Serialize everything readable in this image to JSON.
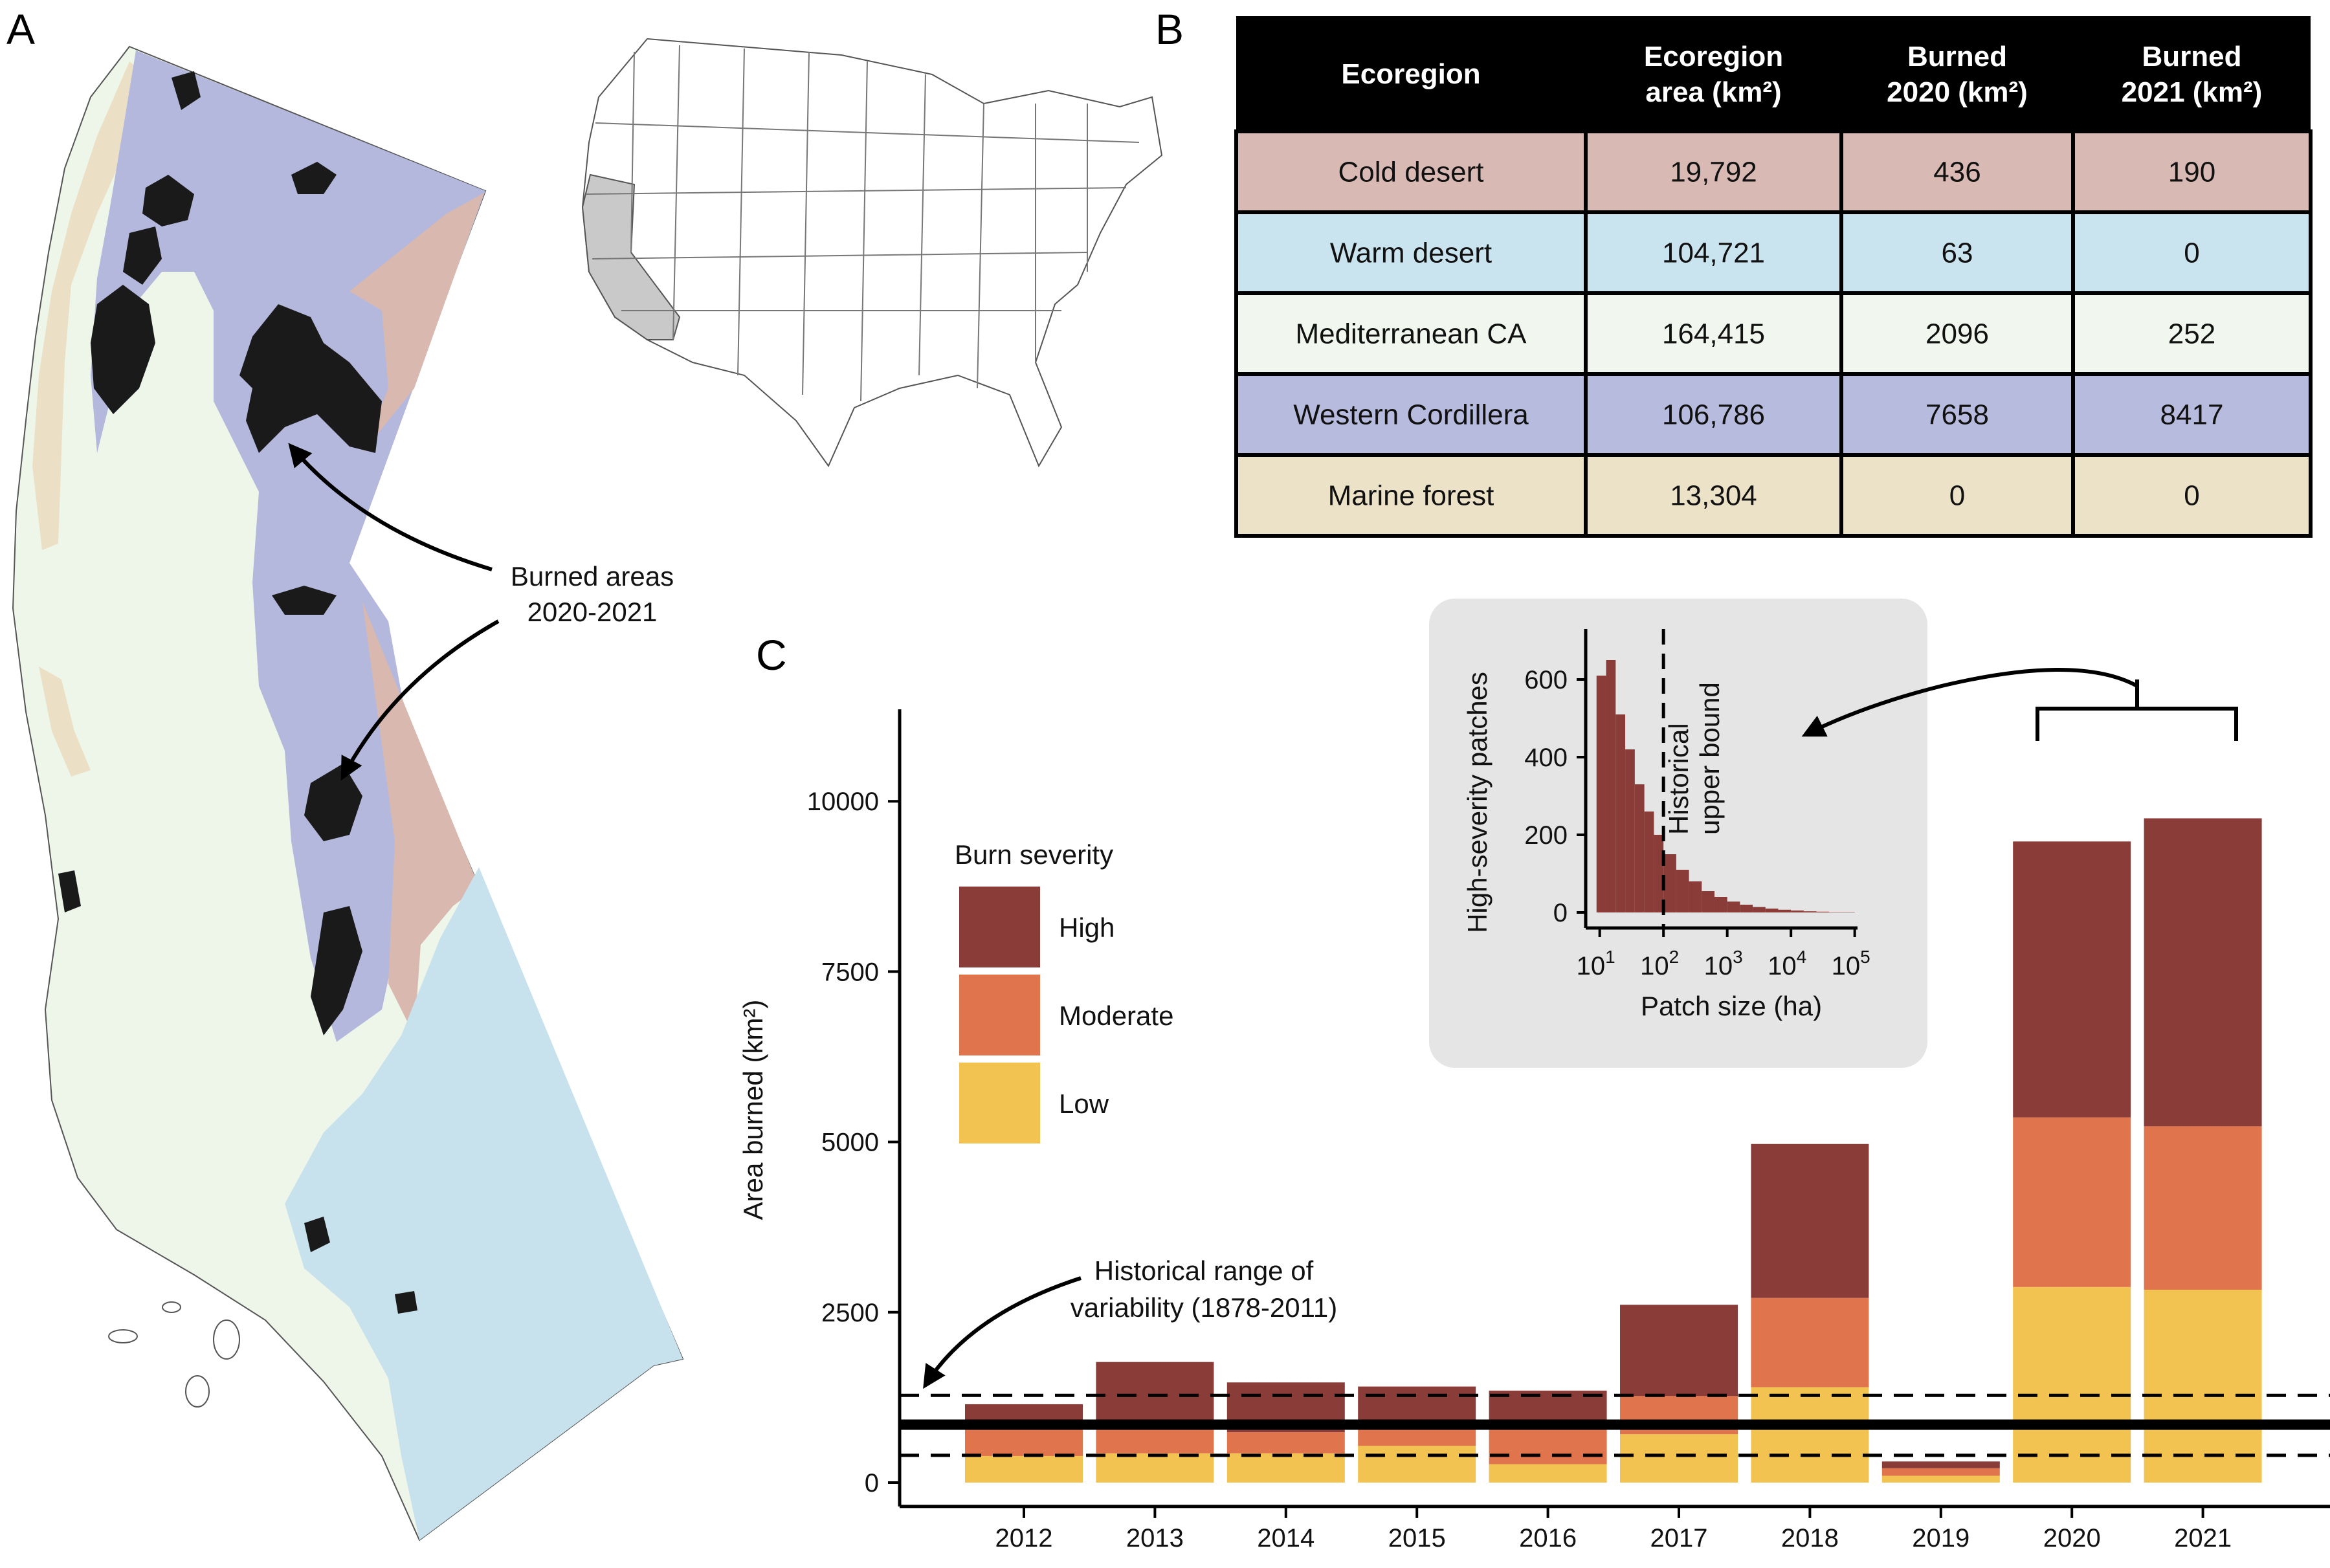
{
  "panels": {
    "a": "A",
    "b": "B",
    "c": "C"
  },
  "map": {
    "annotation_lines": [
      "Burned areas",
      "2020-2021"
    ],
    "ecoregion_colors": {
      "cold_desert": "#d9b8b0",
      "warm_desert": "#c8e2ed",
      "mediterranean_ca": "#eef6ea",
      "western_cordillera": "#b4b8dc",
      "marine_forest": "#ebe0c5",
      "burned": "#1a1a1a"
    }
  },
  "table": {
    "headers": [
      [
        "Ecoregion"
      ],
      [
        "Ecoregion",
        "area (km²)"
      ],
      [
        "Burned",
        "2020 (km²)"
      ],
      [
        "Burned",
        "2021 (km²)"
      ]
    ],
    "rows": [
      {
        "color": "#d8b9b3",
        "cells": [
          "Cold desert",
          "19,792",
          "436",
          "190"
        ]
      },
      {
        "color": "#c9e3ef",
        "cells": [
          "Warm desert",
          "104,721",
          "63",
          "0"
        ]
      },
      {
        "color": "#f1f7ee",
        "cells": [
          "Mediterranean CA",
          "164,415",
          "2096",
          "252"
        ]
      },
      {
        "color": "#b7bbdd",
        "cells": [
          "Western Cordillera",
          "106,786",
          "7658",
          "8417"
        ]
      },
      {
        "color": "#ece2c7",
        "cells": [
          "Marine forest",
          "13,304",
          "0",
          "0"
        ]
      }
    ]
  },
  "chart_data": [
    {
      "type": "bar",
      "stacked": true,
      "categories": [
        "2012",
        "2013",
        "2014",
        "2015",
        "2016",
        "2017",
        "2018",
        "2019",
        "2020",
        "2021"
      ],
      "series": [
        {
          "name": "Low",
          "color": "#f2c350",
          "values": [
            390,
            430,
            430,
            540,
            270,
            710,
            1400,
            100,
            2870,
            2830
          ]
        },
        {
          "name": "Moderate",
          "color": "#e0744c",
          "values": [
            410,
            370,
            310,
            280,
            570,
            560,
            1310,
            110,
            2490,
            2400
          ]
        },
        {
          "name": "High",
          "color": "#8a3c38",
          "values": [
            350,
            970,
            730,
            590,
            510,
            1340,
            2260,
            100,
            4050,
            4520
          ]
        }
      ],
      "ylabel": "Area burned (km²)",
      "yticks": [
        0,
        2500,
        5000,
        7500,
        10000
      ],
      "ylim": [
        -350,
        11350
      ],
      "legend_title": "Burn severity",
      "legend_entries": [
        "High",
        "Moderate",
        "Low"
      ],
      "reference_lines": {
        "mean": 850,
        "lower": 400,
        "upper": 1280
      },
      "annotation_lines": [
        "Historical range of",
        "variability (1878-2011)"
      ]
    },
    {
      "type": "bar",
      "bins_log10_edges": [
        0.95,
        1.1,
        1.25,
        1.4,
        1.55,
        1.7,
        1.85,
        2.0,
        2.2,
        2.4,
        2.6,
        2.8,
        3.0,
        3.2,
        3.4,
        3.6,
        3.8,
        4.0,
        4.2,
        4.4,
        4.6,
        4.8,
        5.0
      ],
      "values": [
        610,
        650,
        510,
        420,
        330,
        260,
        200,
        150,
        110,
        80,
        55,
        40,
        28,
        20,
        14,
        10,
        7,
        5,
        3,
        2,
        1,
        1
      ],
      "color": "#8a3c38",
      "xlabel": "Patch size (ha)",
      "ylabel": "High-severity patches",
      "yticks": [
        0,
        200,
        400,
        600
      ],
      "ylim": [
        -40,
        730
      ],
      "xtick_exponents": [
        "1",
        "2",
        "3",
        "4",
        "5"
      ],
      "xtick_base": "10",
      "vline_log10": 2,
      "vline_label": [
        "Historical",
        "upper bound"
      ]
    }
  ]
}
